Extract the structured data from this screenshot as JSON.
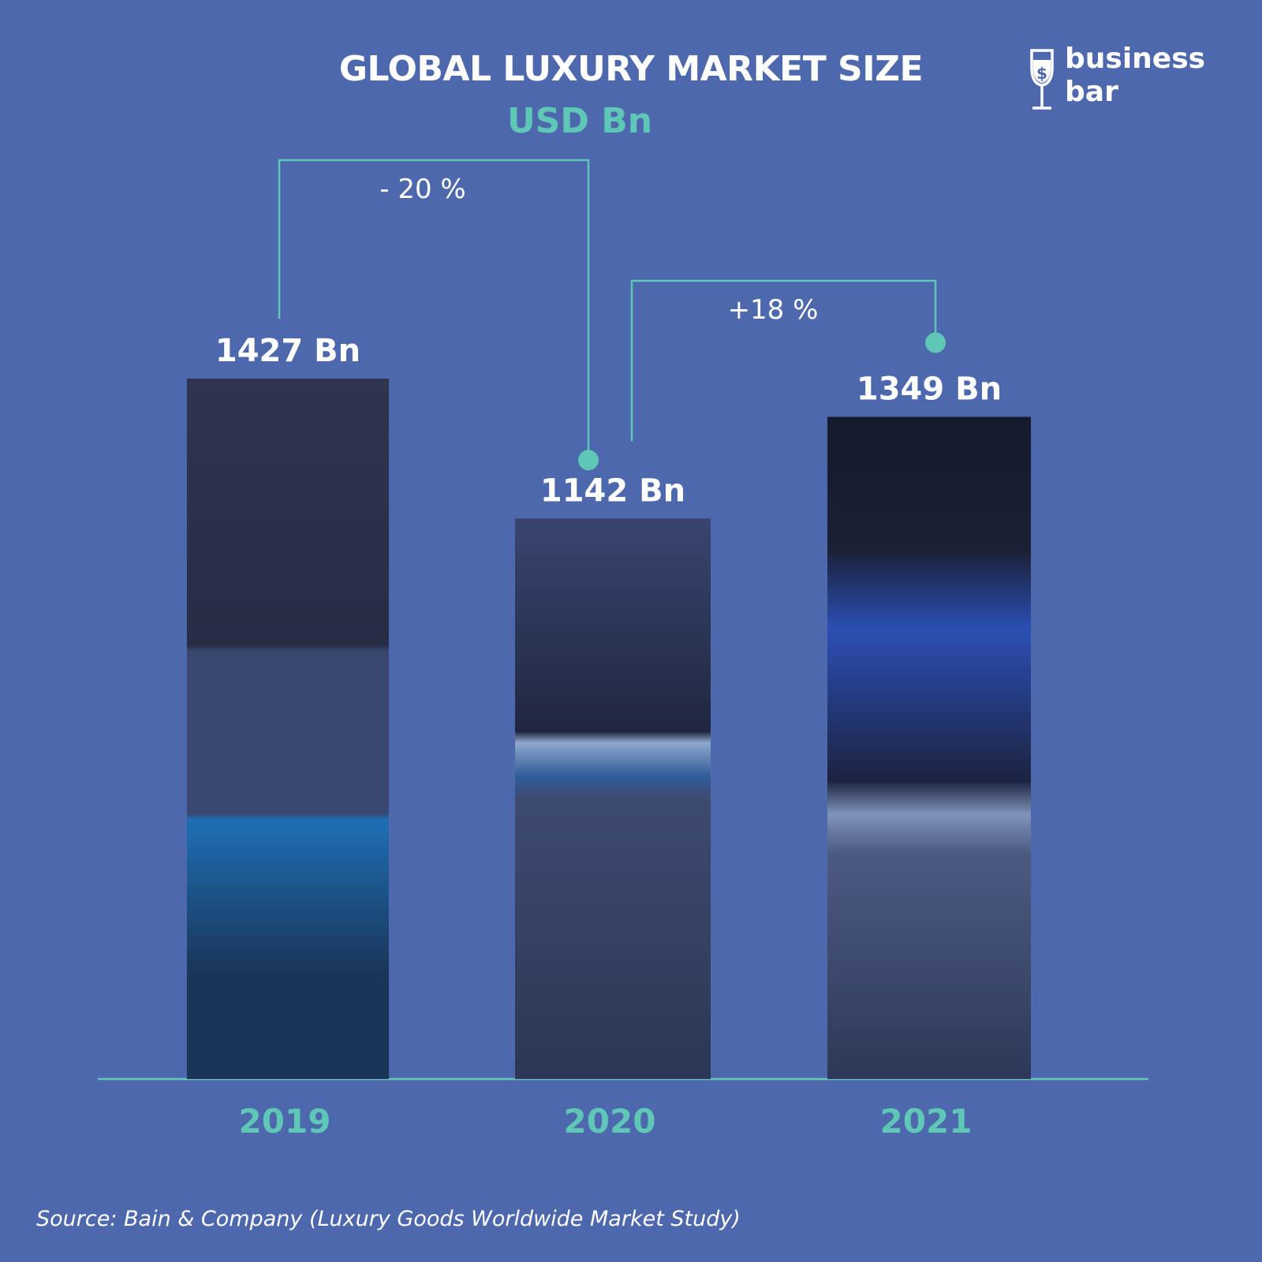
{
  "header": {
    "title": "GLOBAL LUXURY MARKET SIZE",
    "subtitle": "USD Bn"
  },
  "logo": {
    "text": "business\nbar",
    "icon": "wine-glass-dollar-icon"
  },
  "source": "Source: Bain & Company  (Luxury Goods Worldwide Market Study)",
  "colors": {
    "background": "#4e68ae",
    "accent": "#5ec7b6",
    "text": "#ffffff",
    "bar_dark": "#2a3350"
  },
  "chart_data": {
    "type": "bar",
    "categories": [
      "2019",
      "2020",
      "2021"
    ],
    "values": [
      1427,
      1142,
      1349
    ],
    "value_labels": [
      "1427 Bn",
      "1142 Bn",
      "1349 Bn"
    ],
    "changes": [
      {
        "from": "2019",
        "to": "2020",
        "label": "- 20 %"
      },
      {
        "from": "2020",
        "to": "2021",
        "label": "+18  %"
      }
    ],
    "title": "GLOBAL LUXURY MARKET SIZE",
    "ylabel": "",
    "xlabel": "",
    "grid": false
  }
}
